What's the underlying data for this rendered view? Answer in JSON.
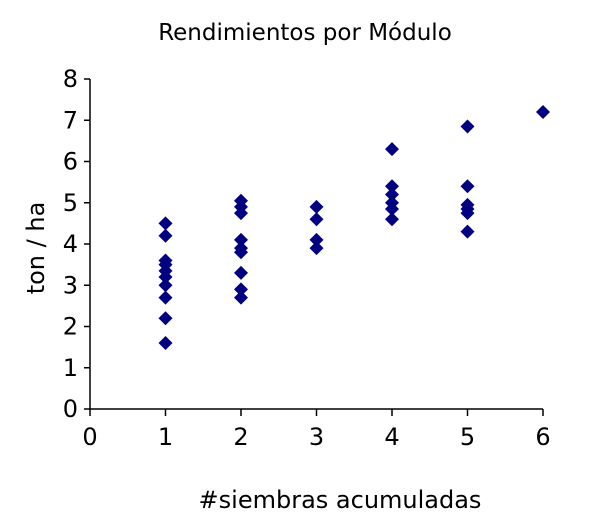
{
  "chart_data": {
    "type": "scatter",
    "title": "Rendimientos por Módulo",
    "xlabel": "#siembras acumuladas",
    "ylabel": "ton / ha",
    "xlim": [
      0,
      6
    ],
    "ylim": [
      0,
      8
    ],
    "xticks": [
      "0",
      "1",
      "2",
      "3",
      "4",
      "5",
      "6"
    ],
    "yticks": [
      "0",
      "1",
      "2",
      "3",
      "4",
      "5",
      "6",
      "7",
      "8"
    ],
    "grid": false,
    "legend": "none",
    "marker": "diamond",
    "color": "#000080",
    "points": [
      {
        "x": 1,
        "y": 4.5
      },
      {
        "x": 1,
        "y": 4.2
      },
      {
        "x": 1,
        "y": 3.6
      },
      {
        "x": 1,
        "y": 3.5
      },
      {
        "x": 1,
        "y": 3.35
      },
      {
        "x": 1,
        "y": 3.2
      },
      {
        "x": 1,
        "y": 3.0
      },
      {
        "x": 1,
        "y": 2.7
      },
      {
        "x": 1,
        "y": 2.2
      },
      {
        "x": 1,
        "y": 1.6
      },
      {
        "x": 2,
        "y": 5.05
      },
      {
        "x": 2,
        "y": 4.9
      },
      {
        "x": 2,
        "y": 4.75
      },
      {
        "x": 2,
        "y": 4.1
      },
      {
        "x": 2,
        "y": 3.9
      },
      {
        "x": 2,
        "y": 3.8
      },
      {
        "x": 2,
        "y": 3.3
      },
      {
        "x": 2,
        "y": 2.9
      },
      {
        "x": 2,
        "y": 2.7
      },
      {
        "x": 3,
        "y": 4.9
      },
      {
        "x": 3,
        "y": 4.6
      },
      {
        "x": 3,
        "y": 4.1
      },
      {
        "x": 3,
        "y": 3.9
      },
      {
        "x": 4,
        "y": 6.3
      },
      {
        "x": 4,
        "y": 5.4
      },
      {
        "x": 4,
        "y": 5.2
      },
      {
        "x": 4,
        "y": 5.0
      },
      {
        "x": 4,
        "y": 4.85
      },
      {
        "x": 4,
        "y": 4.6
      },
      {
        "x": 5,
        "y": 6.85
      },
      {
        "x": 5,
        "y": 5.4
      },
      {
        "x": 5,
        "y": 4.95
      },
      {
        "x": 5,
        "y": 4.85
      },
      {
        "x": 5,
        "y": 4.75
      },
      {
        "x": 5,
        "y": 4.3
      },
      {
        "x": 6,
        "y": 7.2
      }
    ]
  }
}
